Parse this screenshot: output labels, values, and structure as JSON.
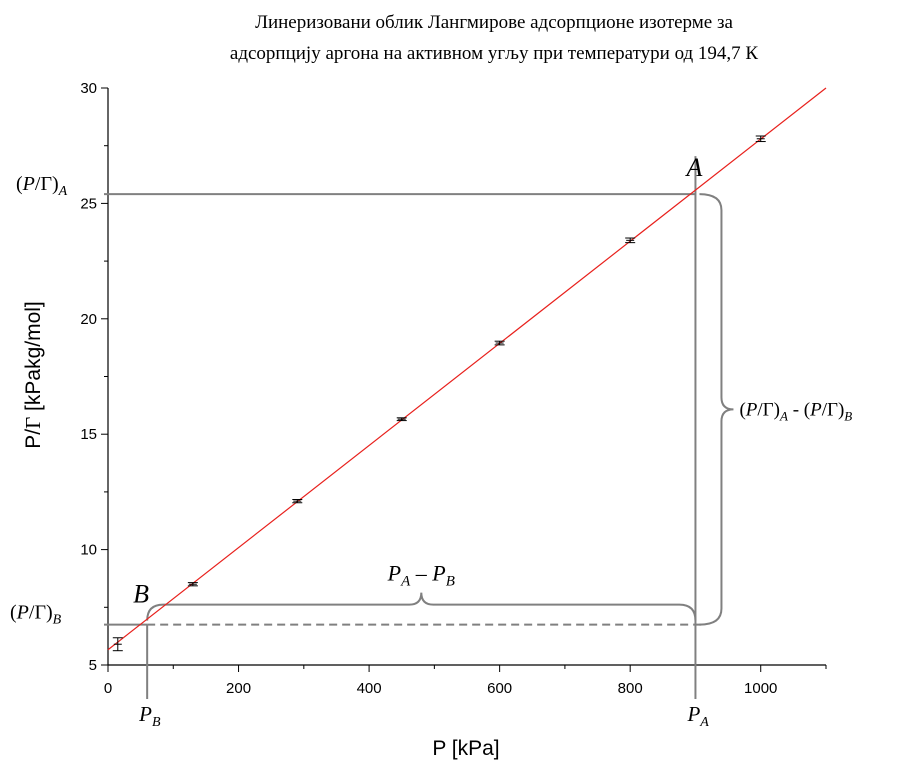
{
  "chart_data": {
    "type": "scatter",
    "title_lines": [
      "Линеризовани облик Лангмирове адсорпционе изотерме за",
      "адсорпцију аргона на активном угљу при температури од 194,7 К"
    ],
    "xlabel": "P [kPa]",
    "ylabel_parts": {
      "pre": "P/",
      "greek": "Γ",
      "post": " [kPakg/mol]"
    },
    "xlim": [
      0,
      1100
    ],
    "ylim": [
      5,
      30
    ],
    "xticks": [
      0,
      200,
      400,
      600,
      800,
      1000
    ],
    "yticks": [
      5,
      10,
      15,
      20,
      25,
      30
    ],
    "grid": false,
    "series": [
      {
        "points": [
          {
            "x": 15,
            "y": 5.9,
            "err": 0.28
          },
          {
            "x": 130,
            "y": 8.5,
            "err": 0.07
          },
          {
            "x": 290,
            "y": 12.1,
            "err": 0.07
          },
          {
            "x": 450,
            "y": 15.65,
            "err": 0.06
          },
          {
            "x": 600,
            "y": 18.95,
            "err": 0.08
          },
          {
            "x": 800,
            "y": 23.4,
            "err": 0.1
          },
          {
            "x": 1000,
            "y": 27.8,
            "err": 0.12
          }
        ]
      }
    ],
    "fit_line": {
      "x": [
        0,
        1100
      ],
      "y": [
        5.66,
        30.0
      ],
      "color": "#e8201c"
    },
    "annotations": {
      "A": {
        "label": "A",
        "x": 900,
        "y": 25.4
      },
      "B": {
        "label": "B",
        "x": 60,
        "y": 6.75
      },
      "PA": {
        "main": "P",
        "sub": "A"
      },
      "PB": {
        "main": "P",
        "sub": "B"
      },
      "PGA": {
        "open": "(",
        "p": "P",
        "slash": "/Γ)",
        "sub": "A"
      },
      "PGB": {
        "open": "(",
        "p": "P",
        "slash": "/Γ)",
        "sub": "B"
      },
      "diff_x": {
        "a": "P",
        "asub": "A",
        "op": " – ",
        "b": "P",
        "bsub": "B"
      },
      "diff_y": {
        "open": "(",
        "p": "P",
        "slash": "/Γ)",
        "asub": "A",
        "op": " - (",
        "p2": "P",
        "slash2": "/Γ)",
        "bsub": "B"
      }
    },
    "colors": {
      "guide": "#808080",
      "data": "#000000",
      "fit": "#e8201c"
    }
  }
}
